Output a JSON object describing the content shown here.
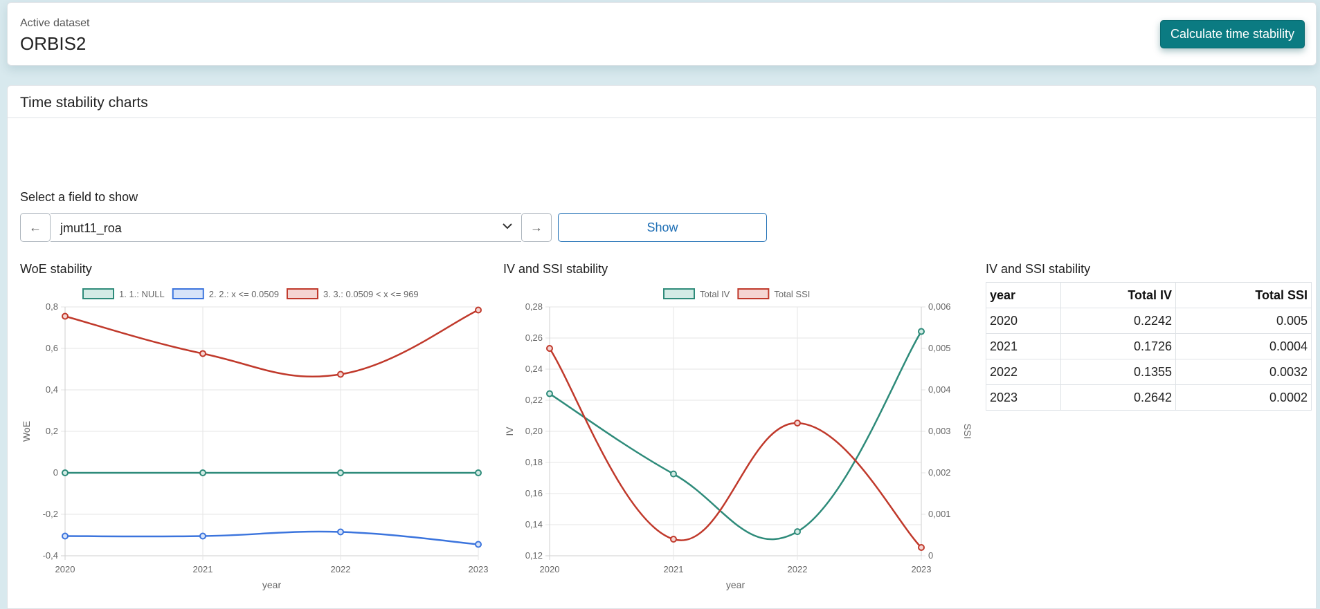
{
  "header": {
    "active_label": "Active dataset",
    "dataset_name": "ORBIS2",
    "calc_button": "Calculate time stability"
  },
  "main": {
    "title": "Time stability charts",
    "select_label": "Select a field to show",
    "prev_button": "←",
    "next_button": "→",
    "selected_field": "jmut11_roa",
    "show_button": "Show"
  },
  "woe_chart_title": "WoE stability",
  "ivssi_chart_title": "IV and SSI stability",
  "table_title": "IV and SSI stability",
  "chart_data": [
    {
      "type": "line",
      "x": [
        "2020",
        "2021",
        "2022",
        "2023"
      ],
      "xlabel": "year",
      "ylabel": "WoE",
      "ylim": [
        -0.4,
        0.8
      ],
      "yticks": [
        "0,8",
        "0,6",
        "0,4",
        "0,2",
        "0",
        "-0,2",
        "-0,4"
      ],
      "grid": true,
      "legend": "top",
      "series": [
        {
          "name": "1. 1.: NULL",
          "values": [
            0.0,
            0.0,
            0.0,
            0.0
          ],
          "color": "#2e8b7a",
          "fill": "#d3ebe5"
        },
        {
          "name": "2. 2.: x <= 0.0509",
          "values": [
            -0.305,
            -0.305,
            -0.285,
            -0.345
          ],
          "color": "#3b74dd",
          "fill": "#d6e3f9"
        },
        {
          "name": "3. 3.: 0.0509 < x <= 969",
          "values": [
            0.755,
            0.575,
            0.475,
            0.785
          ],
          "color": "#c0392b",
          "fill": "#f5d5d2"
        }
      ]
    },
    {
      "type": "line",
      "x": [
        "2020",
        "2021",
        "2022",
        "2023"
      ],
      "xlabel": "year",
      "ylabel": "IV",
      "ylabel_right": "SSI",
      "ylim": [
        0.12,
        0.28
      ],
      "ylim_right": [
        0,
        0.006
      ],
      "yticks": [
        "0,28",
        "0,26",
        "0,24",
        "0,22",
        "0,20",
        "0,18",
        "0,16",
        "0,14",
        "0,12"
      ],
      "yticks_right": [
        "0,006",
        "0,005",
        "0,004",
        "0,003",
        "0,002",
        "0,001",
        "0"
      ],
      "grid": true,
      "legend": "top",
      "series": [
        {
          "name": "Total IV",
          "axis": "left",
          "values": [
            0.2242,
            0.1726,
            0.1355,
            0.2642
          ],
          "color": "#2e8b7a",
          "fill": "#d3ebe5"
        },
        {
          "name": "Total SSI",
          "axis": "right",
          "values": [
            0.005,
            0.0004,
            0.0032,
            0.0002
          ],
          "color": "#c0392b",
          "fill": "#f5d5d2"
        }
      ]
    },
    {
      "type": "table",
      "columns": [
        "year",
        "Total IV",
        "Total SSI"
      ],
      "rows": [
        [
          "2020",
          "0.2242",
          "0.005"
        ],
        [
          "2021",
          "0.1726",
          "0.0004"
        ],
        [
          "2022",
          "0.1355",
          "0.0032"
        ],
        [
          "2023",
          "0.2642",
          "0.0002"
        ]
      ]
    }
  ]
}
